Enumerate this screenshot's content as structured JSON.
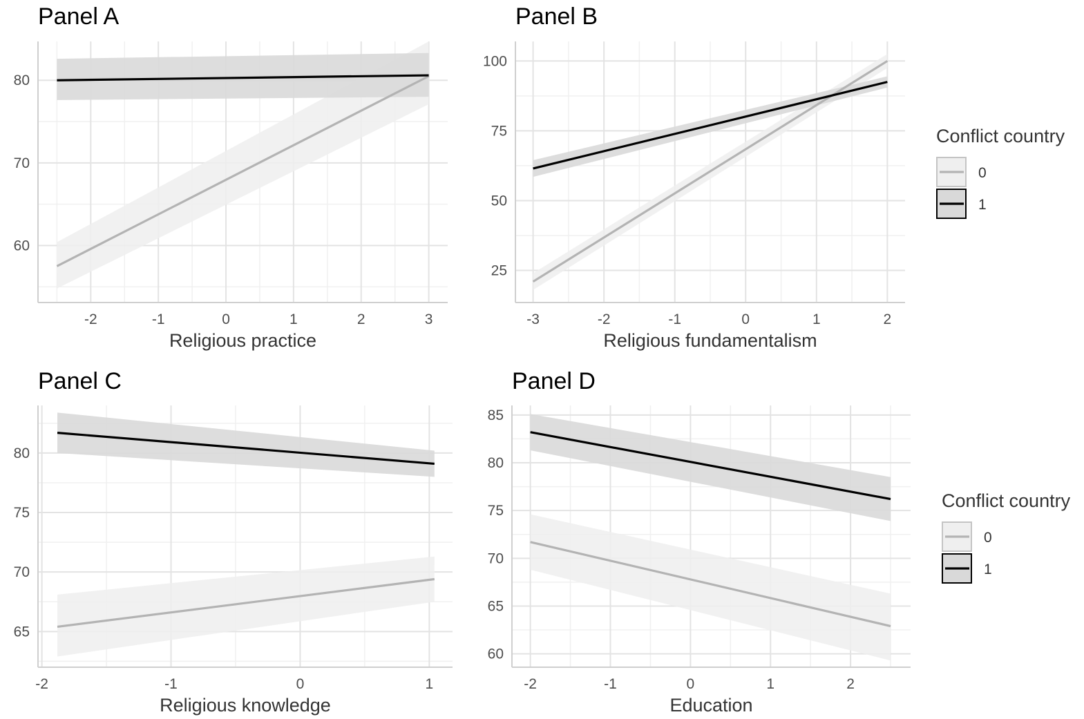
{
  "colors": {
    "series0_line": "#b3b3b3",
    "series0_band": "#efefef",
    "series1_line": "#000000",
    "series1_band": "#d9d9d9",
    "grid_major": "#e3e3e3",
    "grid_minor": "#f0f0f0",
    "axis": "#cfcfcf"
  },
  "legend": {
    "title": "Conflict country",
    "items": [
      {
        "label": "0"
      },
      {
        "label": "1"
      }
    ]
  },
  "chart_data": [
    {
      "type": "line",
      "title": "Panel A",
      "xlabel": "Religious practice",
      "ylabel": "",
      "xlim": [
        -2.78,
        3.28
      ],
      "ylim": [
        53.1,
        84.7
      ],
      "xticks": [
        -2,
        -1,
        0,
        1,
        2,
        3
      ],
      "yticks": [
        60,
        70,
        80
      ],
      "x": [
        -2.5,
        3.0
      ],
      "series": [
        {
          "name": "0",
          "values": [
            57.5,
            80.5
          ],
          "lower": [
            54.8,
            77.1
          ],
          "upper": [
            60.4,
            84.7
          ]
        },
        {
          "name": "1",
          "values": [
            80.0,
            80.6
          ],
          "lower": [
            77.6,
            78.0
          ],
          "upper": [
            82.6,
            83.3
          ]
        }
      ]
    },
    {
      "type": "line",
      "title": "Panel B",
      "xlabel": "Religious fundamentalism",
      "ylabel": "",
      "xlim": [
        -3.25,
        2.25
      ],
      "ylim": [
        13.5,
        107
      ],
      "xticks": [
        -3,
        -2,
        -1,
        0,
        1,
        2
      ],
      "yticks": [
        25,
        50,
        75,
        100
      ],
      "x": [
        -3,
        2
      ],
      "series": [
        {
          "name": "0",
          "values": [
            21,
            100
          ],
          "lower": [
            18,
            97.5
          ],
          "upper": [
            24,
            102.5
          ]
        },
        {
          "name": "1",
          "values": [
            61.5,
            92.5
          ],
          "lower": [
            58.5,
            90.5
          ],
          "upper": [
            64.5,
            94.5
          ]
        }
      ]
    },
    {
      "type": "line",
      "title": "Panel C",
      "xlabel": "Religious knowledge",
      "ylabel": "",
      "xlim": [
        -2.03,
        1.18
      ],
      "ylim": [
        62.0,
        84.0
      ],
      "xticks": [
        -2,
        -1,
        0,
        1
      ],
      "yticks": [
        65,
        70,
        75,
        80
      ],
      "x": [
        -1.88,
        1.04
      ],
      "series": [
        {
          "name": "0",
          "values": [
            65.4,
            69.4
          ],
          "lower": [
            62.9,
            67.5
          ],
          "upper": [
            68.1,
            71.3
          ]
        },
        {
          "name": "1",
          "values": [
            81.7,
            79.1
          ],
          "lower": [
            80.0,
            78.0
          ],
          "upper": [
            83.4,
            80.2
          ]
        }
      ]
    },
    {
      "type": "line",
      "title": "Panel D",
      "xlabel": "Education",
      "ylabel": "",
      "xlim": [
        -2.23,
        2.75
      ],
      "ylim": [
        58.6,
        86.0
      ],
      "xticks": [
        -2,
        -1,
        0,
        1,
        2
      ],
      "yticks": [
        60,
        65,
        70,
        75,
        80,
        85
      ],
      "x": [
        -2,
        2.5
      ],
      "series": [
        {
          "name": "0",
          "values": [
            71.7,
            62.9
          ],
          "lower": [
            68.8,
            59.3
          ],
          "upper": [
            74.6,
            66.3
          ]
        },
        {
          "name": "1",
          "values": [
            83.2,
            76.2
          ],
          "lower": [
            81.3,
            73.9
          ],
          "upper": [
            85.1,
            78.5
          ]
        }
      ]
    }
  ]
}
